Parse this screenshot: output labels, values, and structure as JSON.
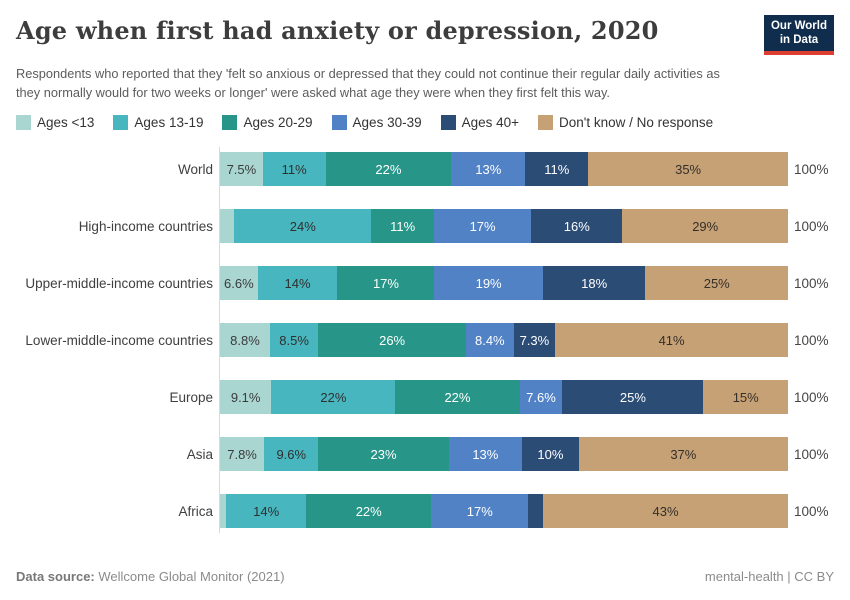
{
  "header": {
    "title": "Age when first had anxiety or depression, 2020",
    "logo_line1": "Our World",
    "logo_line2": "in Data"
  },
  "subtitle": "Respondents who reported that they 'felt so anxious or depressed that they could not continue their regular daily activities as they normally would for two weeks or longer' were asked what age they were when they first felt this way.",
  "chart_data": {
    "type": "bar",
    "orientation": "horizontal",
    "stacked": true,
    "grid": false,
    "legend_position": "top",
    "xlim": [
      0,
      100
    ],
    "row_total_label": "100%",
    "categories": [
      "World",
      "High-income countries",
      "Upper-middle-income countries",
      "Lower-middle-income countries",
      "Europe",
      "Asia",
      "Africa"
    ],
    "series": [
      {
        "name": "Ages <13",
        "color": "#a9d6d1",
        "text_color": "#3b3b3b",
        "values": [
          7.5,
          2.5,
          6.6,
          8.8,
          9.1,
          7.8,
          1.1
        ],
        "labels": [
          "7.5%",
          "",
          "6.6%",
          "8.8%",
          "9.1%",
          "7.8%",
          ""
        ]
      },
      {
        "name": "Ages 13-19",
        "color": "#48b6bf",
        "text_color": "#2f2f2f",
        "values": [
          11,
          24,
          14,
          8.5,
          22,
          9.6,
          14
        ],
        "labels": [
          "11%",
          "24%",
          "14%",
          "8.5%",
          "22%",
          "9.6%",
          "14%"
        ]
      },
      {
        "name": "Ages 20-29",
        "color": "#279688",
        "text_color": "#ffffff",
        "values": [
          22,
          11,
          17,
          26,
          22,
          23,
          22
        ],
        "labels": [
          "22%",
          "11%",
          "17%",
          "26%",
          "22%",
          "23%",
          "22%"
        ]
      },
      {
        "name": "Ages 30-39",
        "color": "#5182c6",
        "text_color": "#ffffff",
        "values": [
          13,
          17,
          19,
          8.4,
          7.6,
          13,
          17
        ],
        "labels": [
          "13%",
          "17%",
          "19%",
          "8.4%",
          "7.6%",
          "13%",
          "17%"
        ]
      },
      {
        "name": "Ages 40+",
        "color": "#2b4c75",
        "text_color": "#ffffff",
        "values": [
          11,
          16,
          18,
          7.3,
          25,
          10,
          2.6
        ],
        "labels": [
          "11%",
          "16%",
          "18%",
          "7.3%",
          "25%",
          "10%",
          ""
        ]
      },
      {
        "name": "Don't know / No response",
        "color": "#c7a176",
        "text_color": "#332f28",
        "values": [
          35,
          29,
          25,
          41,
          15,
          37,
          43
        ],
        "labels": [
          "35%",
          "29%",
          "25%",
          "41%",
          "15%",
          "37%",
          "43%"
        ]
      }
    ]
  },
  "footer": {
    "source_label": "Data source:",
    "source_value": "Wellcome Global Monitor (2021)",
    "right_text": "mental-health | CC BY"
  },
  "colors": {
    "logo_bg": "#102d4e",
    "logo_stripe": "#dc3e32",
    "axis_line": "#d9d9d9",
    "title": "#3d3d3d",
    "subtitle": "#5c5c5c"
  }
}
